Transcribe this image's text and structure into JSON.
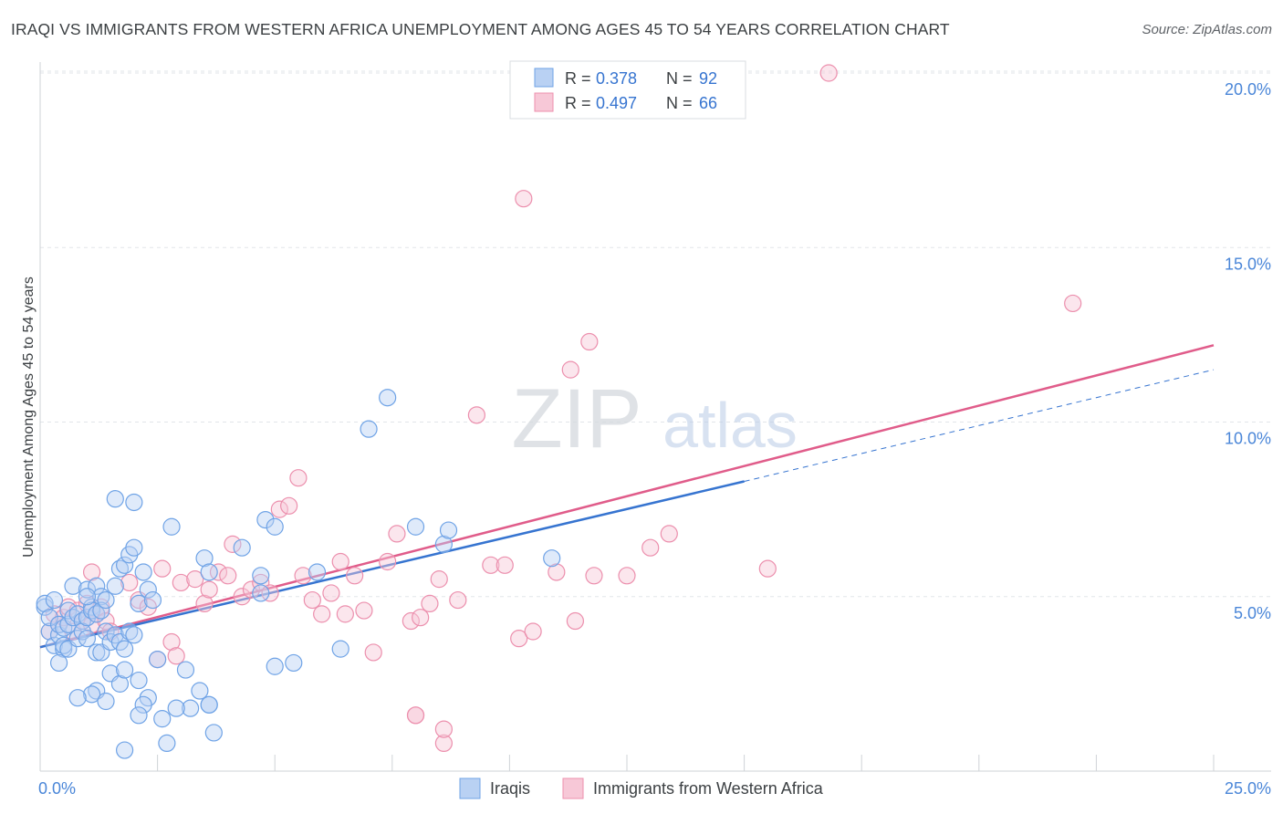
{
  "chart_data": {
    "type": "scatter",
    "title": "IRAQI VS IMMIGRANTS FROM WESTERN AFRICA UNEMPLOYMENT AMONG AGES 45 TO 54 YEARS CORRELATION CHART",
    "source": "Source: ZipAtlas.com",
    "ylabel": "Unemployment Among Ages 45 to 54 years",
    "xlabel": "",
    "xlim": [
      0,
      25
    ],
    "ylim": [
      0,
      20.5
    ],
    "y_ticks": [
      5,
      10,
      15,
      20
    ],
    "y_tick_labels": [
      "5.0%",
      "10.0%",
      "15.0%",
      "20.0%"
    ],
    "x_tick_labels": {
      "min": "0.0%",
      "max": "25.0%"
    },
    "x_minor_ticks": [
      0,
      2.5,
      5,
      7.5,
      10,
      12.5,
      15,
      17.5,
      20,
      22.5,
      25
    ],
    "watermark": {
      "zip": "ZIP",
      "atlas": "atlas"
    },
    "legend_top": [
      {
        "r_label": "R = ",
        "r_value": "0.378",
        "n_label": "N = ",
        "n_value": "92"
      },
      {
        "r_label": "R = ",
        "r_value": "0.497",
        "n_label": "N = ",
        "n_value": "66"
      }
    ],
    "series": [
      {
        "name": "Iraqis",
        "color": "#6fa3e6",
        "fill": "#b9d1f3",
        "line_color": "#3674d0",
        "trend": {
          "x0": 0,
          "y0": 3.55,
          "x1": 15.0,
          "y1": 8.3,
          "dash_to_x": 25,
          "dash_to_y": 11.5
        },
        "points": [
          [
            0.1,
            4.7
          ],
          [
            0.1,
            4.8
          ],
          [
            0.2,
            4.0
          ],
          [
            0.2,
            4.4
          ],
          [
            0.3,
            4.9
          ],
          [
            0.3,
            3.6
          ],
          [
            0.4,
            3.9
          ],
          [
            0.4,
            4.2
          ],
          [
            0.5,
            3.5
          ],
          [
            0.5,
            4.1
          ],
          [
            0.4,
            3.1
          ],
          [
            0.5,
            3.6
          ],
          [
            0.6,
            4.2
          ],
          [
            0.6,
            4.6
          ],
          [
            0.6,
            3.5
          ],
          [
            0.7,
            5.3
          ],
          [
            0.7,
            4.4
          ],
          [
            0.8,
            3.8
          ],
          [
            0.8,
            4.5
          ],
          [
            0.9,
            4.3
          ],
          [
            0.9,
            4.0
          ],
          [
            1.0,
            4.4
          ],
          [
            1.0,
            5.2
          ],
          [
            1.0,
            3.8
          ],
          [
            1.1,
            4.7
          ],
          [
            1.1,
            4.6
          ],
          [
            1.2,
            4.5
          ],
          [
            1.2,
            5.3
          ],
          [
            1.3,
            5.0
          ],
          [
            1.3,
            4.6
          ],
          [
            1.4,
            4.9
          ],
          [
            1.4,
            4.0
          ],
          [
            1.2,
            3.4
          ],
          [
            1.3,
            3.4
          ],
          [
            1.5,
            3.7
          ],
          [
            1.6,
            3.9
          ],
          [
            1.7,
            3.7
          ],
          [
            1.8,
            3.5
          ],
          [
            1.9,
            4.0
          ],
          [
            2.0,
            3.9
          ],
          [
            1.6,
            5.3
          ],
          [
            1.7,
            5.8
          ],
          [
            1.8,
            5.9
          ],
          [
            1.9,
            6.2
          ],
          [
            2.0,
            6.4
          ],
          [
            2.1,
            4.8
          ],
          [
            2.2,
            5.7
          ],
          [
            2.3,
            5.2
          ],
          [
            2.4,
            4.9
          ],
          [
            1.6,
            7.8
          ],
          [
            2.0,
            7.7
          ],
          [
            2.8,
            7.0
          ],
          [
            3.5,
            6.1
          ],
          [
            3.6,
            5.7
          ],
          [
            4.3,
            6.4
          ],
          [
            4.7,
            5.1
          ],
          [
            4.7,
            5.6
          ],
          [
            4.8,
            7.2
          ],
          [
            5.0,
            7.0
          ],
          [
            5.9,
            5.7
          ],
          [
            1.2,
            2.3
          ],
          [
            1.1,
            2.2
          ],
          [
            0.8,
            2.1
          ],
          [
            1.4,
            2.0
          ],
          [
            1.5,
            2.8
          ],
          [
            1.7,
            2.5
          ],
          [
            1.8,
            2.9
          ],
          [
            2.1,
            2.6
          ],
          [
            2.3,
            2.1
          ],
          [
            2.2,
            1.9
          ],
          [
            2.6,
            1.5
          ],
          [
            2.5,
            3.2
          ],
          [
            3.1,
            2.9
          ],
          [
            3.2,
            1.8
          ],
          [
            3.4,
            2.3
          ],
          [
            3.6,
            1.9
          ],
          [
            3.7,
            1.1
          ],
          [
            2.7,
            0.8
          ],
          [
            1.8,
            0.6
          ],
          [
            2.1,
            1.6
          ],
          [
            5.0,
            3.0
          ],
          [
            5.4,
            3.1
          ],
          [
            6.4,
            3.5
          ],
          [
            7.0,
            9.8
          ],
          [
            7.4,
            10.7
          ],
          [
            8.0,
            7.0
          ],
          [
            8.6,
            6.5
          ],
          [
            8.7,
            6.9
          ],
          [
            10.9,
            6.1
          ],
          [
            3.6,
            1.9
          ],
          [
            2.9,
            1.8
          ],
          [
            1.0,
            5.0
          ]
        ]
      },
      {
        "name": "Immigrants from Western Africa",
        "color": "#ec8fad",
        "fill": "#f7c8d7",
        "line_color": "#e05c8a",
        "trend": {
          "x0": 0,
          "y0": 3.55,
          "x1": 25,
          "y1": 12.2
        },
        "points": [
          [
            0.2,
            4.0
          ],
          [
            0.3,
            4.5
          ],
          [
            0.4,
            4.2
          ],
          [
            0.5,
            4.4
          ],
          [
            0.6,
            4.7
          ],
          [
            0.7,
            4.0
          ],
          [
            0.8,
            4.6
          ],
          [
            0.9,
            4.3
          ],
          [
            1.0,
            4.8
          ],
          [
            1.1,
            4.2
          ],
          [
            1.2,
            4.5
          ],
          [
            1.3,
            4.7
          ],
          [
            1.4,
            4.3
          ],
          [
            1.5,
            4.0
          ],
          [
            1.1,
            5.7
          ],
          [
            1.9,
            5.4
          ],
          [
            2.1,
            4.9
          ],
          [
            2.3,
            4.7
          ],
          [
            2.6,
            5.8
          ],
          [
            2.8,
            3.7
          ],
          [
            2.9,
            3.3
          ],
          [
            2.5,
            3.2
          ],
          [
            3.0,
            5.4
          ],
          [
            3.3,
            5.5
          ],
          [
            3.5,
            4.8
          ],
          [
            3.6,
            5.2
          ],
          [
            3.8,
            5.7
          ],
          [
            4.0,
            5.6
          ],
          [
            4.1,
            6.5
          ],
          [
            4.3,
            5.0
          ],
          [
            4.5,
            5.2
          ],
          [
            4.7,
            5.4
          ],
          [
            4.9,
            5.1
          ],
          [
            5.1,
            7.5
          ],
          [
            5.3,
            7.6
          ],
          [
            5.5,
            8.4
          ],
          [
            5.6,
            5.6
          ],
          [
            5.8,
            4.9
          ],
          [
            6.0,
            4.5
          ],
          [
            6.2,
            5.1
          ],
          [
            6.4,
            6.0
          ],
          [
            6.5,
            4.5
          ],
          [
            6.7,
            5.6
          ],
          [
            6.9,
            4.6
          ],
          [
            7.1,
            3.4
          ],
          [
            7.4,
            6.0
          ],
          [
            7.6,
            6.8
          ],
          [
            7.9,
            4.3
          ],
          [
            8.1,
            4.4
          ],
          [
            8.3,
            4.8
          ],
          [
            8.5,
            5.5
          ],
          [
            8.9,
            4.9
          ],
          [
            9.3,
            10.2
          ],
          [
            9.6,
            5.9
          ],
          [
            9.9,
            5.9
          ],
          [
            10.2,
            3.8
          ],
          [
            10.5,
            4.0
          ],
          [
            11.0,
            5.7
          ],
          [
            11.4,
            4.3
          ],
          [
            11.8,
            5.6
          ],
          [
            12.5,
            5.6
          ],
          [
            13.0,
            6.4
          ],
          [
            13.4,
            6.8
          ],
          [
            15.5,
            5.8
          ],
          [
            8.0,
            1.6
          ],
          [
            8.6,
            0.8
          ]
        ],
        "extra_points": [
          [
            10.3,
            16.4
          ],
          [
            11.7,
            12.3
          ],
          [
            11.3,
            11.5
          ],
          [
            16.8,
            20.0
          ],
          [
            22.0,
            13.4
          ],
          [
            8.0,
            1.6
          ],
          [
            8.6,
            1.2
          ]
        ]
      }
    ]
  },
  "legend_bottom": [
    {
      "label": "Iraqis"
    },
    {
      "label": "Immigrants from Western Africa"
    }
  ]
}
